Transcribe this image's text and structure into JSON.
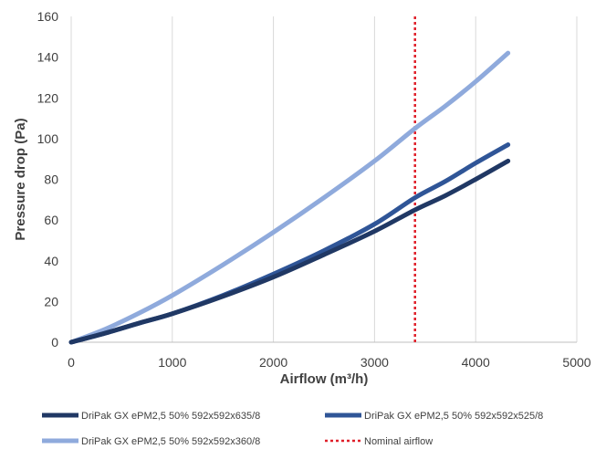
{
  "chart_data": {
    "type": "line",
    "title": "",
    "xlabel": "Airflow (m³/h)",
    "ylabel": "Pressure drop (Pa)",
    "xlim": [
      0,
      5000
    ],
    "ylim": [
      0,
      160
    ],
    "xticks": [
      0,
      1000,
      2000,
      3000,
      4000,
      5000
    ],
    "yticks": [
      0,
      20,
      40,
      60,
      80,
      100,
      120,
      140,
      160
    ],
    "grid": "vertical",
    "legend_position": "bottom",
    "series": [
      {
        "name": "DriPak GX ePM2,5 50% 592x592x635/8",
        "color": "#203864",
        "x": [
          0,
          340,
          680,
          1000,
          1500,
          2000,
          2500,
          3000,
          3400,
          3700,
          4000,
          4320
        ],
        "y": [
          0,
          4.5,
          9.5,
          14,
          22.5,
          32,
          43,
          54.5,
          65,
          72,
          80,
          89
        ]
      },
      {
        "name": "DriPak GX ePM2,5 50% 592x592x525/8",
        "color": "#2F5597",
        "x": [
          0,
          340,
          680,
          1000,
          1500,
          2000,
          2500,
          3000,
          3400,
          3700,
          4000,
          4320
        ],
        "y": [
          0,
          4.5,
          9.5,
          14,
          23,
          33.5,
          45,
          58,
          71,
          79,
          88,
          97
        ]
      },
      {
        "name": "DriPak GX ePM2,5 50% 592x592x360/8",
        "color": "#8FAADC",
        "x": [
          0,
          340,
          680,
          1000,
          1500,
          2000,
          2500,
          3000,
          3400,
          3700,
          4000,
          4320
        ],
        "y": [
          0,
          6.5,
          14.5,
          23,
          38,
          54,
          71,
          89,
          105,
          116,
          128,
          142
        ]
      }
    ],
    "reference_lines": [
      {
        "name": "Nominal airflow",
        "x": 3400,
        "color": "#E0202A",
        "style": "dotted"
      }
    ]
  }
}
